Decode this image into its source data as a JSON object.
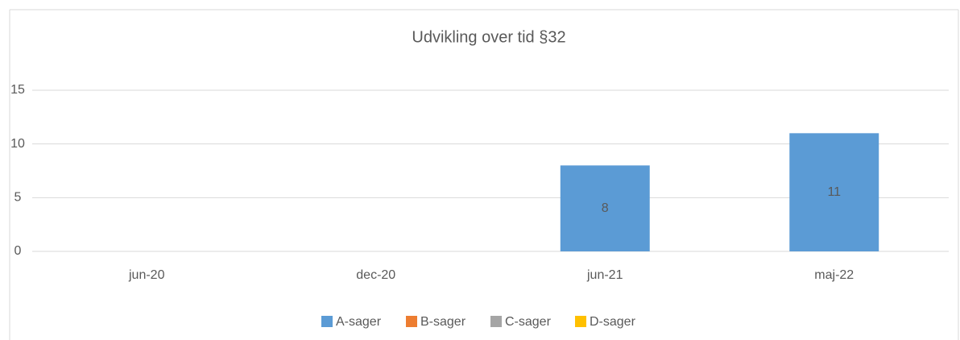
{
  "chart_data": {
    "type": "stacked_bar",
    "title": "Udvikling over tid §32",
    "categories": [
      "jun-20",
      "dec-20",
      "jun-21",
      "maj-22"
    ],
    "series": [
      {
        "name": "A-sager",
        "color": "#5b9bd5",
        "values": [
          null,
          null,
          8,
          11
        ]
      },
      {
        "name": "B-sager",
        "color": "#ed7d31",
        "values": [
          null,
          null,
          null,
          null
        ]
      },
      {
        "name": "C-sager",
        "color": "#a5a5a5",
        "values": [
          null,
          null,
          null,
          null
        ]
      },
      {
        "name": "D-sager",
        "color": "#ffc000",
        "values": [
          null,
          null,
          null,
          null
        ]
      }
    ],
    "ylim": [
      0,
      15
    ],
    "yticks": [
      0,
      5,
      10,
      15
    ],
    "grid": true,
    "legend": "bottom",
    "data_labels": true
  }
}
